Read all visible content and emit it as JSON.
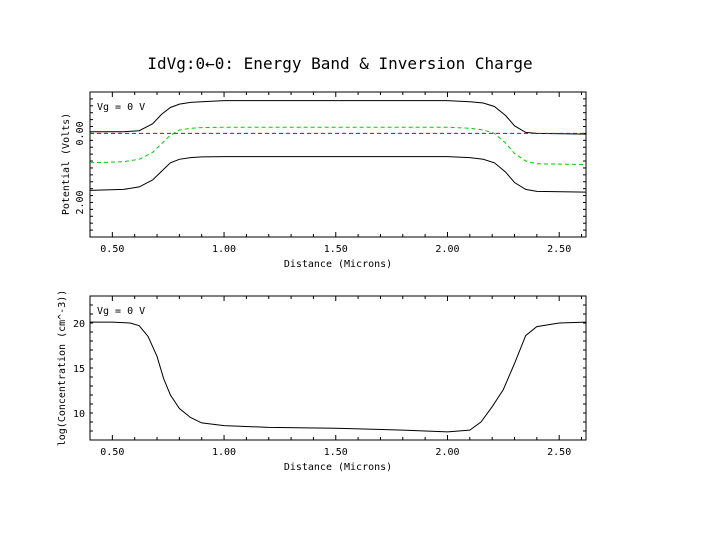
{
  "figure_title": "IdVg:0←0: Energy Band & Inversion Charge",
  "chart_data": [
    {
      "type": "line",
      "annotation": "Vg = 0 V",
      "xlabel": "Distance (Microns)",
      "ylabel": "Potential (Volts)",
      "xlim": [
        0.4,
        2.62
      ],
      "ylim": [
        3.0,
        -1.2
      ],
      "y_inverted": true,
      "x_ticks": [
        "0.50",
        "1.00",
        "1.50",
        "2.00",
        "2.50"
      ],
      "x_tick_values": [
        0.5,
        1.0,
        1.5,
        2.0,
        2.5
      ],
      "y_ticks": [
        "0.00",
        "2.00"
      ],
      "y_tick_values": [
        0.0,
        2.0
      ],
      "series": [
        {
          "color": "#000000",
          "dash": "solid",
          "x": [
            0.4,
            0.55,
            0.62,
            0.68,
            0.72,
            0.76,
            0.8,
            0.85,
            0.9,
            1.0,
            1.5,
            2.0,
            2.1,
            2.16,
            2.21,
            2.26,
            2.3,
            2.35,
            2.4,
            2.62
          ],
          "y": [
            -0.05,
            -0.05,
            -0.08,
            -0.28,
            -0.55,
            -0.75,
            -0.85,
            -0.9,
            -0.92,
            -0.95,
            -0.95,
            -0.95,
            -0.92,
            -0.88,
            -0.78,
            -0.52,
            -0.22,
            -0.03,
            0.0,
            0.02
          ]
        },
        {
          "color": "#00cc00",
          "dash": "dashed",
          "x": [
            0.4,
            0.55,
            0.62,
            0.68,
            0.72,
            0.76,
            0.8,
            0.85,
            0.9,
            1.0,
            1.5,
            2.0,
            2.1,
            2.16,
            2.21,
            2.26,
            2.3,
            2.35,
            2.4,
            2.62
          ],
          "y": [
            0.85,
            0.82,
            0.75,
            0.55,
            0.3,
            0.05,
            -0.1,
            -0.15,
            -0.17,
            -0.18,
            -0.18,
            -0.18,
            -0.15,
            -0.1,
            0.0,
            0.28,
            0.58,
            0.8,
            0.88,
            0.9
          ]
        },
        {
          "color": "#cc0000",
          "dash": "dashed",
          "x": [
            0.4,
            2.62
          ],
          "y": [
            0.0,
            0.0
          ]
        },
        {
          "color": "#000000",
          "dash": "solid",
          "x": [
            0.4,
            0.55,
            0.62,
            0.68,
            0.72,
            0.76,
            0.8,
            0.85,
            0.9,
            1.0,
            1.5,
            2.0,
            2.1,
            2.16,
            2.21,
            2.26,
            2.3,
            2.35,
            2.4,
            2.62
          ],
          "y": [
            1.65,
            1.62,
            1.55,
            1.35,
            1.1,
            0.85,
            0.75,
            0.7,
            0.68,
            0.67,
            0.67,
            0.67,
            0.7,
            0.75,
            0.85,
            1.12,
            1.42,
            1.62,
            1.68,
            1.7
          ]
        }
      ]
    },
    {
      "type": "line",
      "annotation": "Vg = 0 V",
      "xlabel": "Distance (Microns)",
      "ylabel": "log(Concentration (cm^-3))",
      "xlim": [
        0.4,
        2.62
      ],
      "ylim": [
        7.0,
        23.0
      ],
      "x_ticks": [
        "0.50",
        "1.00",
        "1.50",
        "2.00",
        "2.50"
      ],
      "x_tick_values": [
        0.5,
        1.0,
        1.5,
        2.0,
        2.5
      ],
      "y_ticks": [
        "10",
        "15",
        "20"
      ],
      "y_tick_values": [
        10,
        15,
        20
      ],
      "series": [
        {
          "color": "#000000",
          "dash": "solid",
          "x": [
            0.4,
            0.5,
            0.58,
            0.62,
            0.66,
            0.7,
            0.73,
            0.76,
            0.8,
            0.85,
            0.9,
            1.0,
            1.2,
            1.5,
            1.8,
            2.0,
            2.1,
            2.15,
            2.2,
            2.25,
            2.3,
            2.35,
            2.4,
            2.5,
            2.62
          ],
          "y": [
            20.1,
            20.1,
            20.0,
            19.7,
            18.5,
            16.3,
            13.8,
            12.0,
            10.5,
            9.5,
            8.9,
            8.6,
            8.4,
            8.3,
            8.1,
            7.9,
            8.1,
            9.0,
            10.7,
            12.6,
            15.5,
            18.6,
            19.6,
            20.0,
            20.1
          ]
        }
      ]
    }
  ]
}
